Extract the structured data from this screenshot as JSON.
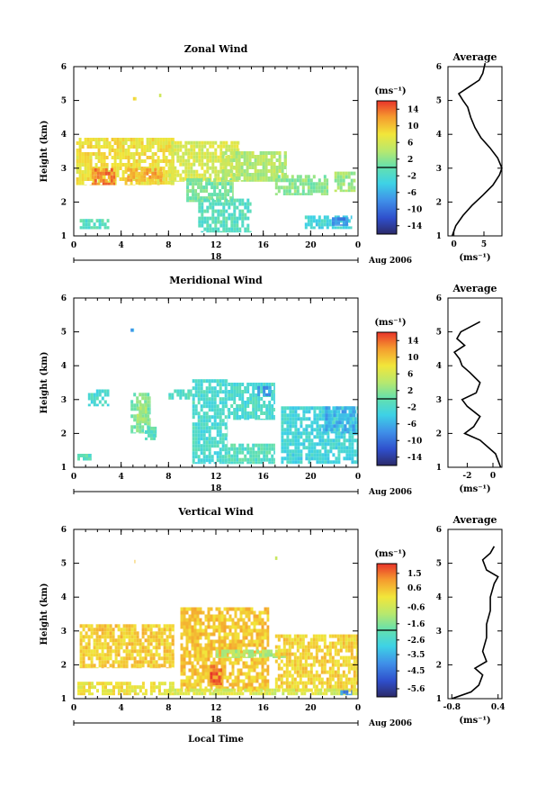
{
  "figure": {
    "x_axis_label": "Local Time",
    "date_label": "Aug 2006",
    "day_label": "18",
    "y_axis_label": "Height (km)",
    "unit_label": "(ms⁻¹)"
  },
  "chart_data": [
    {
      "type": "heatmap",
      "title": "Zonal Wind",
      "xlabel": "",
      "ylabel": "Height (km)",
      "xlim": [
        0,
        24
      ],
      "ylim": [
        1,
        6
      ],
      "x_ticks": [
        "0",
        "4",
        "8",
        "12",
        "16",
        "20",
        "0"
      ],
      "y_ticks": [
        "1",
        "2",
        "3",
        "4",
        "5",
        "6"
      ],
      "colorbar": {
        "unit": "(ms⁻¹)",
        "min": -16,
        "max": 16,
        "tick_labels": [
          "14",
          "10",
          "6",
          "2",
          "-2",
          "-6",
          "-10",
          "-14"
        ],
        "tick_values": [
          14,
          10,
          6,
          2,
          -2,
          -6,
          -10,
          -14
        ]
      },
      "regions": [
        {
          "x0": 0.2,
          "x1": 8.5,
          "y0": 2.5,
          "y1": 3.9,
          "value": 8
        },
        {
          "x0": 1.5,
          "x1": 3.5,
          "y0": 2.5,
          "y1": 3.0,
          "value": 13
        },
        {
          "x0": 4.5,
          "x1": 7.5,
          "y0": 2.6,
          "y1": 3.0,
          "value": 11
        },
        {
          "x0": 8.0,
          "x1": 14.0,
          "y0": 2.6,
          "y1": 3.8,
          "value": 6
        },
        {
          "x0": 9.5,
          "x1": 13.5,
          "y0": 2.0,
          "y1": 2.7,
          "value": 1
        },
        {
          "x0": 10.5,
          "x1": 15.0,
          "y0": 1.1,
          "y1": 2.1,
          "value": -1
        },
        {
          "x0": 12.5,
          "x1": 18.0,
          "y0": 2.6,
          "y1": 3.5,
          "value": 4
        },
        {
          "x0": 17.0,
          "x1": 21.5,
          "y0": 2.2,
          "y1": 2.8,
          "value": 2
        },
        {
          "x0": 19.5,
          "x1": 23.5,
          "y0": 1.2,
          "y1": 1.6,
          "value": -3
        },
        {
          "x0": 21.8,
          "x1": 23.2,
          "y0": 1.3,
          "y1": 1.55,
          "value": -8
        },
        {
          "x0": 22.0,
          "x1": 23.8,
          "y0": 2.3,
          "y1": 2.9,
          "value": 3
        },
        {
          "x0": 0.5,
          "x1": 3.0,
          "y0": 1.2,
          "y1": 1.5,
          "value": -1
        },
        {
          "x0": 5.0,
          "x1": 5.3,
          "y0": 5.0,
          "y1": 5.1,
          "value": 8
        },
        {
          "x0": 7.2,
          "x1": 7.4,
          "y0": 5.1,
          "y1": 5.2,
          "value": 6
        }
      ],
      "average_profile": {
        "title": "Average",
        "xlabel": "(ms⁻¹)",
        "xlim": [
          -1,
          8
        ],
        "x_ticks": [
          0,
          5
        ],
        "y": [
          1.0,
          1.3,
          1.6,
          1.9,
          2.2,
          2.5,
          2.8,
          3.0,
          3.3,
          3.6,
          3.9,
          4.2,
          4.5,
          4.8,
          5.0,
          5.2,
          5.4,
          5.6,
          5.8,
          6.1
        ],
        "x": [
          -0.3,
          0.3,
          1.5,
          3.0,
          4.8,
          6.5,
          7.6,
          8.0,
          7.3,
          6.0,
          4.5,
          3.5,
          2.8,
          2.3,
          1.5,
          0.8,
          2.5,
          4.2,
          4.8,
          5.2
        ]
      }
    },
    {
      "type": "heatmap",
      "title": "Meridional Wind",
      "xlabel": "",
      "ylabel": "Height (km)",
      "xlim": [
        0,
        24
      ],
      "ylim": [
        1,
        6
      ],
      "x_ticks": [
        "0",
        "4",
        "8",
        "12",
        "16",
        "20",
        "0"
      ],
      "y_ticks": [
        "1",
        "2",
        "3",
        "4",
        "5",
        "6"
      ],
      "colorbar": {
        "unit": "(ms⁻¹)",
        "min": -16,
        "max": 16,
        "tick_labels": [
          "14",
          "10",
          "6",
          "2",
          "-2",
          "-6",
          "-10",
          "-14"
        ],
        "tick_values": [
          14,
          10,
          6,
          2,
          -2,
          -6,
          -10,
          -14
        ]
      },
      "regions": [
        {
          "x0": 1.2,
          "x1": 3.0,
          "y0": 2.8,
          "y1": 3.3,
          "value": -2
        },
        {
          "x0": 4.8,
          "x1": 6.5,
          "y0": 2.0,
          "y1": 3.2,
          "value": 1
        },
        {
          "x0": 5.3,
          "x1": 6.2,
          "y0": 2.3,
          "y1": 2.9,
          "value": 3
        },
        {
          "x0": 6.0,
          "x1": 7.0,
          "y0": 1.8,
          "y1": 2.2,
          "value": -1
        },
        {
          "x0": 10.0,
          "x1": 13.0,
          "y0": 1.1,
          "y1": 3.6,
          "value": -2
        },
        {
          "x0": 8.0,
          "x1": 10.0,
          "y0": 3.0,
          "y1": 3.3,
          "value": -1
        },
        {
          "x0": 13.0,
          "x1": 17.0,
          "y0": 1.1,
          "y1": 1.7,
          "value": -1
        },
        {
          "x0": 13.0,
          "x1": 17.0,
          "y0": 2.4,
          "y1": 3.5,
          "value": -2
        },
        {
          "x0": 15.5,
          "x1": 16.7,
          "y0": 3.1,
          "y1": 3.4,
          "value": -7
        },
        {
          "x0": 17.5,
          "x1": 24.0,
          "y0": 1.1,
          "y1": 2.8,
          "value": -3
        },
        {
          "x0": 21.0,
          "x1": 23.8,
          "y0": 2.0,
          "y1": 2.8,
          "value": -6
        },
        {
          "x0": 0.3,
          "x1": 1.5,
          "y0": 1.2,
          "y1": 1.4,
          "value": -1
        },
        {
          "x0": 4.8,
          "x1": 5.1,
          "y0": 5.0,
          "y1": 5.1,
          "value": -6
        }
      ],
      "average_profile": {
        "title": "Average",
        "xlabel": "(ms⁻¹)",
        "xlim": [
          -3.5,
          0.7
        ],
        "x_ticks": [
          -2,
          0
        ],
        "y": [
          1.0,
          1.4,
          1.8,
          2.0,
          2.2,
          2.5,
          2.8,
          3.0,
          3.2,
          3.5,
          3.8,
          4.0,
          4.2,
          4.4,
          4.6,
          4.8,
          5.0,
          5.3
        ],
        "x": [
          0.6,
          0.2,
          -1.0,
          -2.2,
          -1.5,
          -1.0,
          -2.0,
          -2.4,
          -1.3,
          -1.0,
          -1.8,
          -2.4,
          -2.6,
          -3.0,
          -2.2,
          -2.8,
          -2.5,
          -1.0
        ]
      }
    },
    {
      "type": "heatmap",
      "title": "Vertical Wind",
      "xlabel": "Local Time",
      "ylabel": "Height (km)",
      "xlim": [
        0,
        24
      ],
      "ylim": [
        1,
        6
      ],
      "x_ticks": [
        "0",
        "4",
        "8",
        "12",
        "16",
        "20",
        "0"
      ],
      "y_ticks": [
        "1",
        "2",
        "3",
        "4",
        "5",
        "6"
      ],
      "colorbar": {
        "unit": "(ms⁻¹)",
        "min": -6.1,
        "max": 2.1,
        "tick_labels": [
          "1.5",
          "0.6",
          "-0.6",
          "-1.6",
          "-2.6",
          "-3.5",
          "-4.5",
          "-5.6"
        ],
        "tick_values": [
          1.5,
          0.6,
          -0.6,
          -1.6,
          -2.6,
          -3.5,
          -4.5,
          -5.6
        ]
      },
      "regions": [
        {
          "x0": 0.5,
          "x1": 8.5,
          "y0": 1.9,
          "y1": 3.2,
          "value": 0.4
        },
        {
          "x0": 0.3,
          "x1": 8.5,
          "y0": 1.1,
          "y1": 1.5,
          "value": 0.0
        },
        {
          "x0": 9.0,
          "x1": 16.5,
          "y0": 1.2,
          "y1": 3.7,
          "value": 0.5
        },
        {
          "x0": 11.5,
          "x1": 12.5,
          "y0": 1.4,
          "y1": 2.0,
          "value": 1.8
        },
        {
          "x0": 12.0,
          "x1": 18.0,
          "y0": 2.2,
          "y1": 2.45,
          "value": -1.0
        },
        {
          "x0": 17.0,
          "x1": 24.0,
          "y0": 1.2,
          "y1": 2.9,
          "value": 0.3
        },
        {
          "x0": 8.0,
          "x1": 24.0,
          "y0": 1.1,
          "y1": 1.3,
          "value": -0.4
        },
        {
          "x0": 22.5,
          "x1": 23.5,
          "y0": 1.1,
          "y1": 1.25,
          "value": -4.0
        },
        {
          "x0": 4.9,
          "x1": 5.2,
          "y0": 5.0,
          "y1": 5.1,
          "value": 0.2
        },
        {
          "x0": 17.0,
          "x1": 17.2,
          "y0": 5.1,
          "y1": 5.2,
          "value": -0.3
        }
      ],
      "average_profile": {
        "title": "Average",
        "xlabel": "(ms⁻¹)",
        "xlim": [
          -0.9,
          0.5
        ],
        "x_ticks_labels": [
          "-0.8",
          "0.4"
        ],
        "x_ticks": [
          -0.8,
          0.4
        ],
        "y": [
          1.0,
          1.2,
          1.4,
          1.7,
          1.9,
          2.1,
          2.4,
          2.8,
          3.2,
          3.6,
          4.0,
          4.4,
          4.6,
          4.8,
          5.1,
          5.3,
          5.5
        ],
        "x": [
          -0.8,
          -0.3,
          -0.1,
          0.0,
          -0.2,
          0.1,
          0.0,
          0.1,
          0.1,
          0.2,
          0.2,
          0.3,
          0.4,
          0.1,
          0.0,
          0.2,
          0.3
        ]
      }
    }
  ]
}
